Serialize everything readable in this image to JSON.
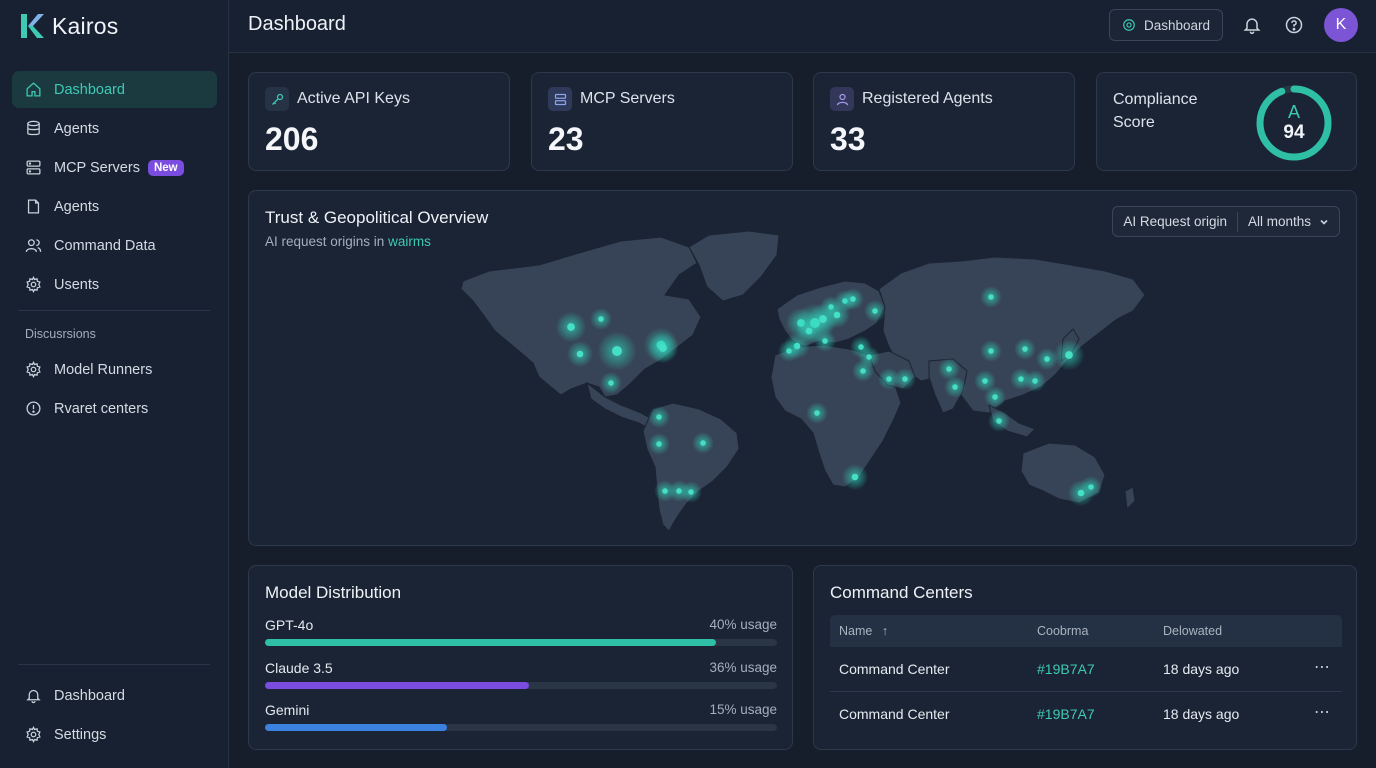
{
  "app": {
    "name": "Kairos",
    "avatar_initial": "K"
  },
  "colors": {
    "accent": "#3ec9b4",
    "purple": "#7a4ce0",
    "blue": "#3b82e0"
  },
  "sidebar": {
    "items": [
      {
        "label": "Dashboard",
        "icon": "home-icon",
        "active": true
      },
      {
        "label": "Agents",
        "icon": "database-icon"
      },
      {
        "label": "MCP Servers",
        "icon": "server-icon",
        "badge": "New"
      },
      {
        "label": "Agents",
        "icon": "file-icon"
      },
      {
        "label": "Command Data",
        "icon": "users-icon"
      },
      {
        "label": "Usents",
        "icon": "gear-icon"
      }
    ],
    "section_label": "Discusrsions",
    "section_items": [
      {
        "label": "Model Runners",
        "icon": "gear-icon"
      },
      {
        "label": "Rvaret centers",
        "icon": "alert-circle-icon"
      }
    ],
    "footer_items": [
      {
        "label": "Dashboard",
        "icon": "bell-icon"
      },
      {
        "label": "Settings",
        "icon": "gear-icon"
      }
    ]
  },
  "header": {
    "title": "Dashboard",
    "button_label": "Dashboard"
  },
  "stats": [
    {
      "label": "Active API Keys",
      "value": "206",
      "icon": "key-icon"
    },
    {
      "label": "MCP Servers",
      "value": "23",
      "icon": "server-icon"
    },
    {
      "label": "Registered Agents",
      "value": "33",
      "icon": "user-icon"
    }
  ],
  "compliance": {
    "label": "Compliance Score",
    "grade": "A",
    "score": "94",
    "score_fraction": 0.94
  },
  "map": {
    "title": "Trust & Geopolitical Overview",
    "subtitle_prefix": "AI request origins in",
    "subtitle_highlight": "wairms",
    "filter_label": "AI Request origin",
    "filter_period": "All months"
  },
  "model_distribution": {
    "title": "Model Distribution",
    "models": [
      {
        "name": "GPT-4o",
        "usage_label": "40% usage",
        "fraction": 0.88,
        "color": "#2fbfa6"
      },
      {
        "name": "Claude 3.5",
        "usage_label": "36% usage",
        "fraction": 0.515,
        "color": "#7a4ce0"
      },
      {
        "name": "Gemini",
        "usage_label": "15% usage",
        "fraction": 0.356,
        "color": "#3b82e0"
      }
    ]
  },
  "command_centers": {
    "title": "Command Centers",
    "columns": [
      "Name",
      "Coobrma",
      "Delowated"
    ],
    "rows": [
      {
        "name": "Command Center",
        "code": "#19B7A7",
        "time": "18 days ago"
      },
      {
        "name": "Command Center",
        "code": "#19B7A7",
        "time": "18 days ago"
      }
    ]
  }
}
